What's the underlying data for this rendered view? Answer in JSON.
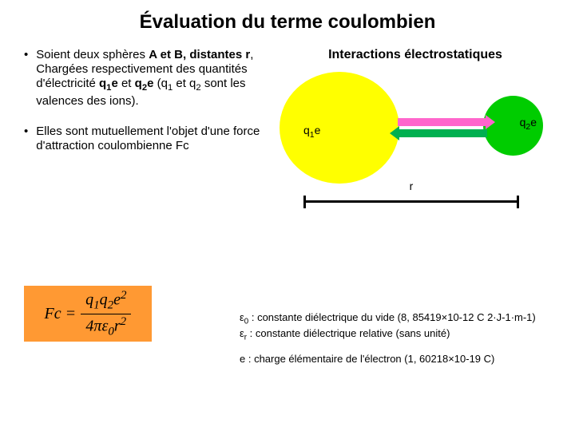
{
  "title": "Évaluation du terme coulombien",
  "bullets": {
    "b1_pre": "Soient deux sphères ",
    "b1_bold1": "A et B, distantes r",
    "b1_mid1": ", Chargées respectivement des quantités d'électricité ",
    "b1_bold2": "q",
    "b1_sub1": "1",
    "b1_bold3": "e",
    "b1_and": "  et ",
    "b1_bold4": "q",
    "b1_sub2": "2",
    "b1_bold5": "e ",
    "b1_paren": "(q",
    "b1_psub1": "1",
    "b1_pmid": " et q",
    "b1_psub2": "2",
    "b1_end": " sont les valences des ions).",
    "b2": " Elles sont mutuellement l'objet d'une force d'attraction coulombienne Fc"
  },
  "diagram": {
    "title": "Interactions électrostatiques",
    "q1_q": "q",
    "q1_s": "1",
    "q1_e": "e",
    "q2_q": "q",
    "q2_s": "2",
    "q2_e": "e",
    "r": "r",
    "yellow_color": "#ffff00",
    "green_color": "#00cc00",
    "arrow_pink": "#ff66cc",
    "arrow_green": "#00b050"
  },
  "formula": {
    "fc": "Fc",
    "eq": " = ",
    "num_q1": "q",
    "num_s1": "1",
    "num_q2": "q",
    "num_s2": "2",
    "num_e": "e",
    "num_e2": "2",
    "den_4": "4",
    "den_pi": "π",
    "den_eps": "ε",
    "den_0": "0",
    "den_r": "r",
    "den_r2": "2",
    "bg": "#ff9933"
  },
  "constants": {
    "eps0_sym": "ε",
    "eps0_sub": "0",
    "eps0_text": " : constante diélectrique du vide (8, 85419×10-12 C 2·J-1·m-1)",
    "epsr_sym": "ε",
    "epsr_sub": "r",
    "epsr_text": " : constante diélectrique relative (sans unité)",
    "e_text": "e : charge élémentaire de l'électron (1, 60218×10-19 C)"
  }
}
